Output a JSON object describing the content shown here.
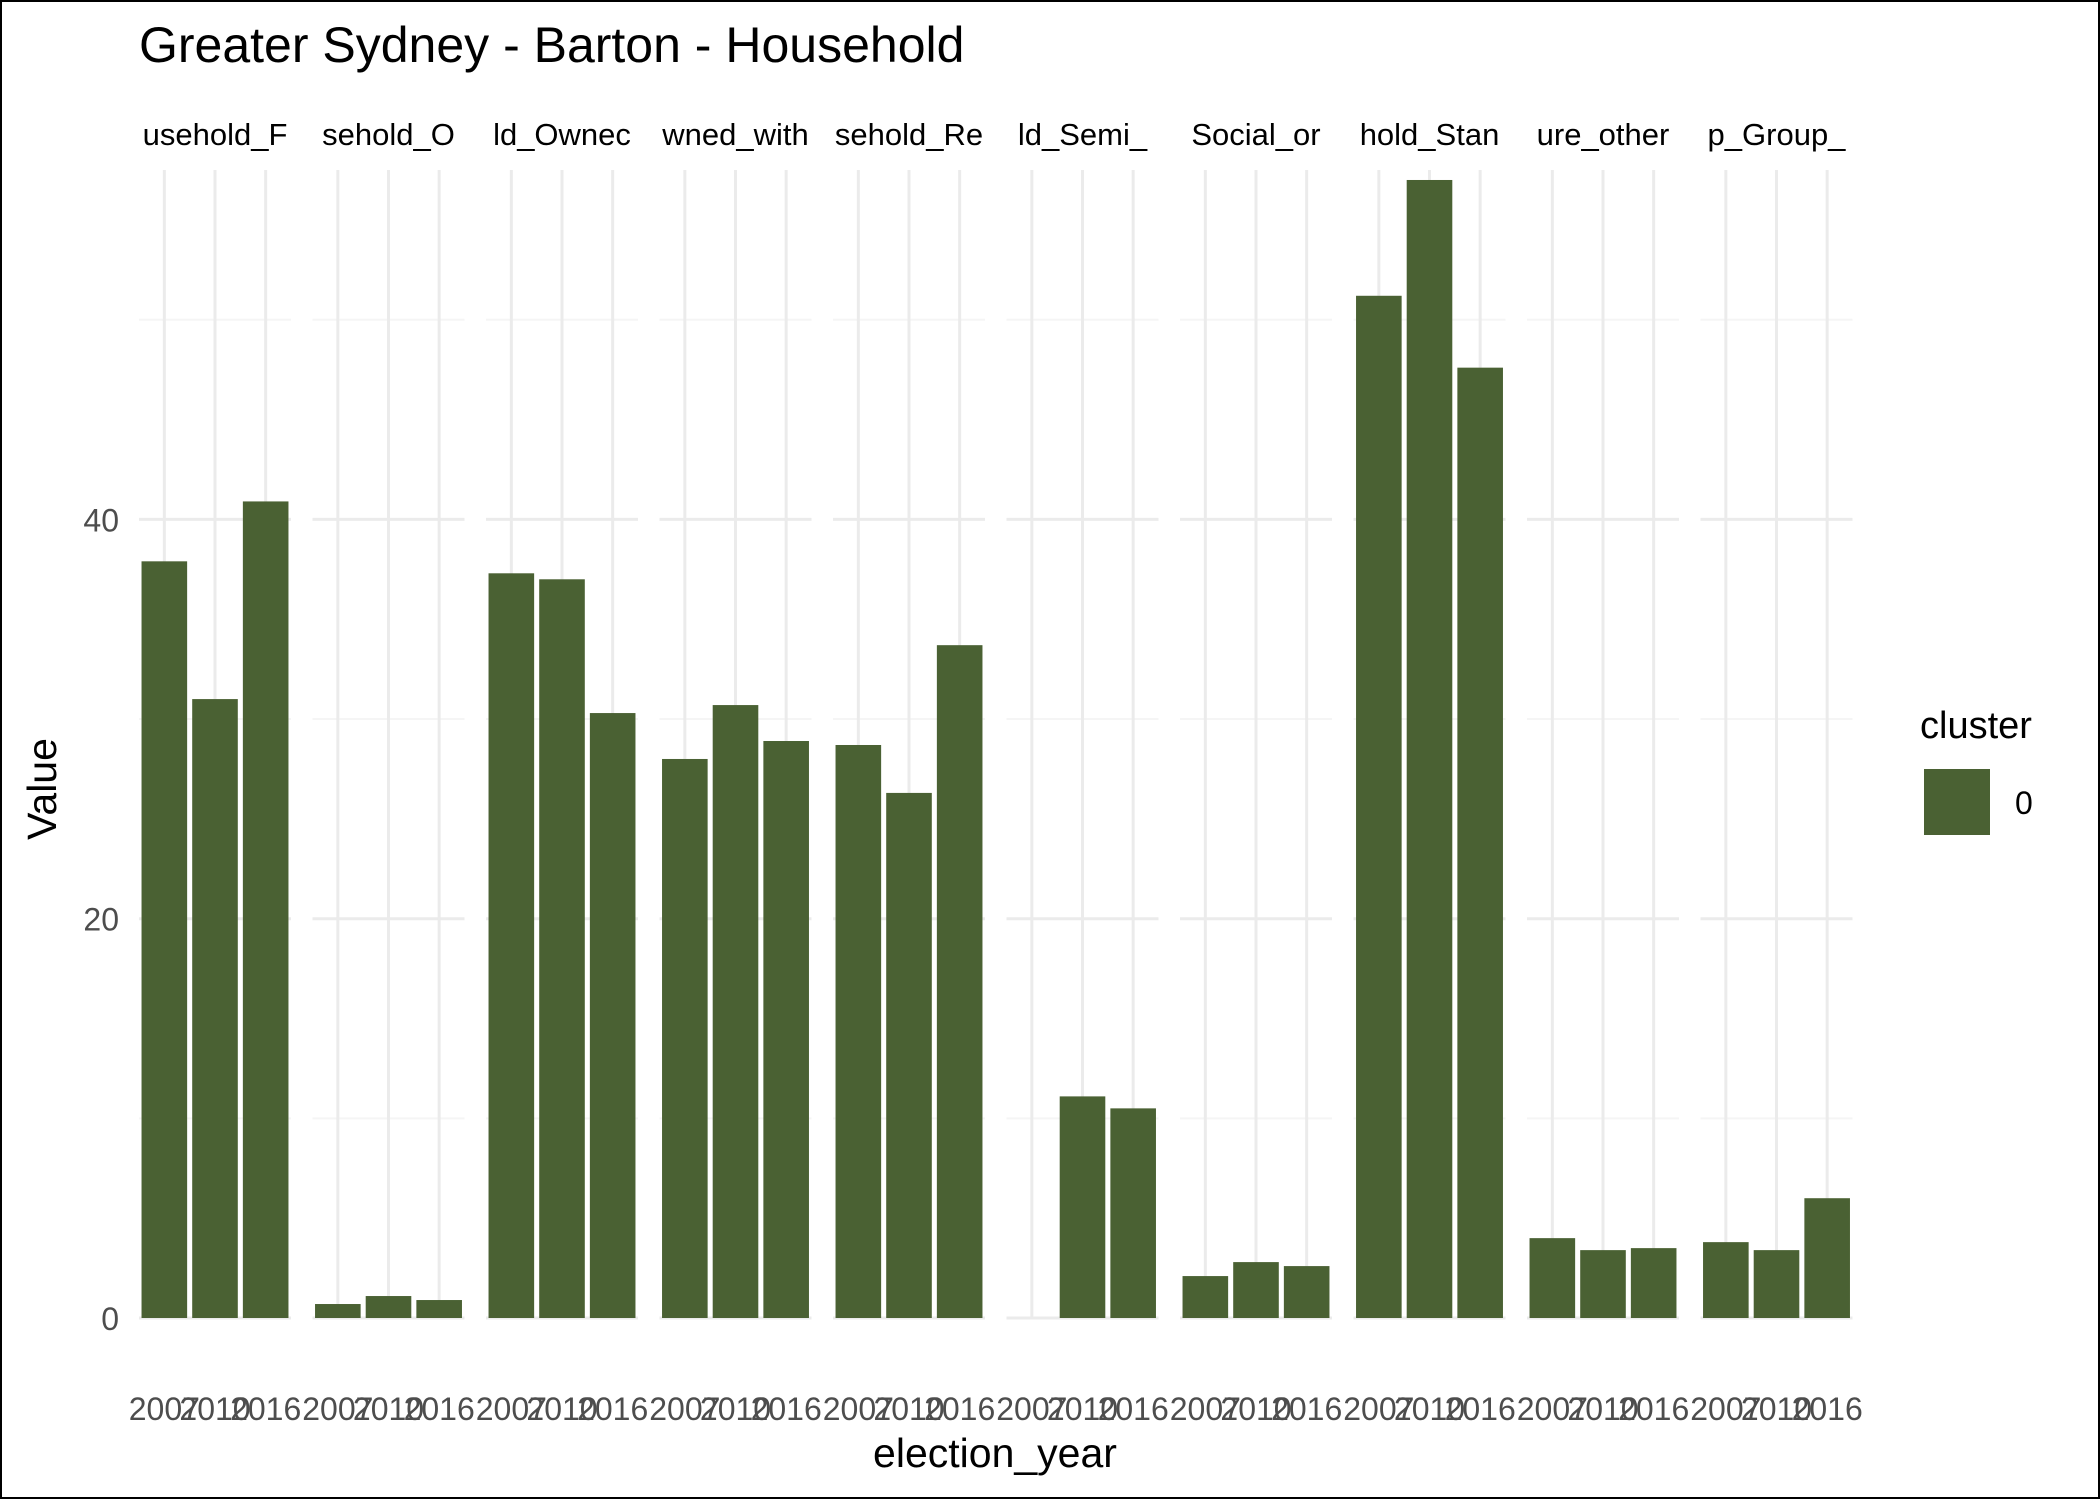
{
  "chart_data": {
    "type": "bar",
    "title": "Greater Sydney - Barton - Household",
    "xlabel": "election_year",
    "ylabel": "Value",
    "ylim": [
      0,
      57.5
    ],
    "y_ticks": [
      0,
      20,
      40
    ],
    "grid": true,
    "legend": {
      "title": "cluster",
      "position": "right",
      "entries": [
        {
          "label": "0",
          "color": "#4a6133"
        }
      ]
    },
    "categories": [
      "2007",
      "2010",
      "2016"
    ],
    "facets": [
      {
        "label": "usehold_F",
        "values": [
          37.9,
          31.0,
          40.9
        ]
      },
      {
        "label": "sehold_O",
        "values": [
          0.7,
          1.1,
          0.9
        ]
      },
      {
        "label": "ld_Ownec",
        "values": [
          37.3,
          37.0,
          30.3
        ]
      },
      {
        "label": "wned_with",
        "values": [
          28.0,
          30.7,
          28.9
        ]
      },
      {
        "label": "sehold_Re",
        "values": [
          28.7,
          26.3,
          33.7
        ]
      },
      {
        "label": "ld_Semi_",
        "values": [
          null,
          11.1,
          10.5
        ]
      },
      {
        "label": "Social_or",
        "values": [
          2.1,
          2.8,
          2.6
        ]
      },
      {
        "label": "hold_Stan",
        "values": [
          51.2,
          57.0,
          47.6
        ]
      },
      {
        "label": "ure_other",
        "values": [
          4.0,
          3.4,
          3.5
        ]
      },
      {
        "label": "p_Group_",
        "values": [
          3.8,
          3.4,
          6.0
        ]
      }
    ],
    "colors": {
      "bar": "#4a6133",
      "grid_major": "#ebebeb",
      "grid_minor": "#f5f5f5",
      "axis_text": "#4d4d4d",
      "text": "#000000"
    }
  }
}
